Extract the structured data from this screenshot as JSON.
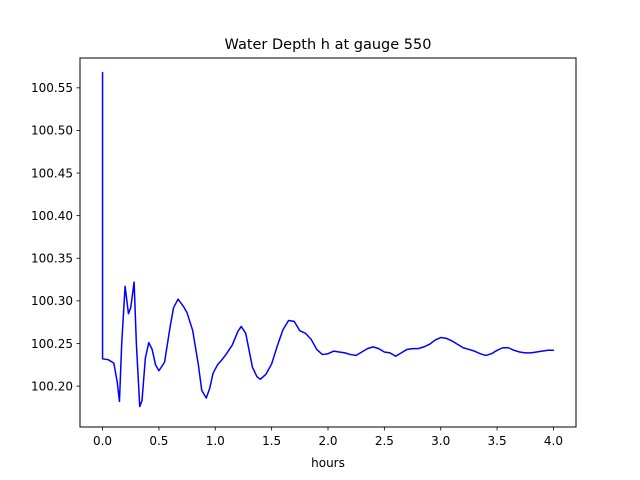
{
  "chart_data": {
    "type": "line",
    "title": "Water Depth h at gauge 550",
    "xlabel": "hours",
    "ylabel": "",
    "xlim": [
      -0.2,
      4.2
    ],
    "ylim": [
      100.152,
      100.585
    ],
    "grid": false,
    "xticks": [
      0.0,
      0.5,
      1.0,
      1.5,
      2.0,
      2.5,
      3.0,
      3.5,
      4.0
    ],
    "xtick_labels": [
      "0.0",
      "0.5",
      "1.0",
      "1.5",
      "2.0",
      "2.5",
      "3.0",
      "3.5",
      "4.0"
    ],
    "yticks": [
      100.2,
      100.25,
      100.3,
      100.35,
      100.4,
      100.45,
      100.5,
      100.55
    ],
    "ytick_labels": [
      "100.20",
      "100.25",
      "100.30",
      "100.35",
      "100.40",
      "100.45",
      "100.50",
      "100.55"
    ],
    "series": [
      {
        "color": "#0000ff",
        "x": [
          0.0,
          0.0,
          0.0,
          0.05,
          0.1,
          0.13,
          0.15,
          0.17,
          0.2,
          0.23,
          0.25,
          0.28,
          0.3,
          0.33,
          0.35,
          0.38,
          0.41,
          0.44,
          0.47,
          0.5,
          0.55,
          0.6,
          0.63,
          0.67,
          0.72,
          0.75,
          0.8,
          0.85,
          0.88,
          0.92,
          0.95,
          0.98,
          1.02,
          1.06,
          1.1,
          1.15,
          1.2,
          1.23,
          1.27,
          1.3,
          1.33,
          1.37,
          1.4,
          1.45,
          1.5,
          1.55,
          1.6,
          1.65,
          1.7,
          1.75,
          1.8,
          1.85,
          1.9,
          1.95,
          2.0,
          2.05,
          2.1,
          2.15,
          2.2,
          2.25,
          2.3,
          2.35,
          2.4,
          2.45,
          2.5,
          2.55,
          2.6,
          2.65,
          2.7,
          2.75,
          2.8,
          2.85,
          2.9,
          2.95,
          3.0,
          3.05,
          3.1,
          3.15,
          3.2,
          3.25,
          3.3,
          3.35,
          3.4,
          3.45,
          3.5,
          3.55,
          3.6,
          3.65,
          3.7,
          3.75,
          3.8,
          3.85,
          3.9,
          3.95,
          4.0
        ],
        "y": [
          100.568,
          100.35,
          100.232,
          100.231,
          100.227,
          100.205,
          100.182,
          100.25,
          100.317,
          100.285,
          100.292,
          100.322,
          100.25,
          100.176,
          100.183,
          100.233,
          100.251,
          100.243,
          100.225,
          100.218,
          100.228,
          100.27,
          100.292,
          100.302,
          100.293,
          100.286,
          100.265,
          100.225,
          100.195,
          100.186,
          100.197,
          100.215,
          100.225,
          100.231,
          100.238,
          100.248,
          100.264,
          100.27,
          100.262,
          100.242,
          100.222,
          100.211,
          100.208,
          100.214,
          100.226,
          100.247,
          100.266,
          100.277,
          100.276,
          100.265,
          100.262,
          100.255,
          100.243,
          100.237,
          100.238,
          100.241,
          100.24,
          100.239,
          100.237,
          100.236,
          100.24,
          100.244,
          100.246,
          100.244,
          100.24,
          100.239,
          100.235,
          100.239,
          100.243,
          100.244,
          100.244,
          100.246,
          100.249,
          100.254,
          100.257,
          100.256,
          100.253,
          100.249,
          100.245,
          100.243,
          100.241,
          100.238,
          100.236,
          100.238,
          100.242,
          100.245,
          100.245,
          100.242,
          100.24,
          100.239,
          100.239,
          100.24,
          100.241,
          100.242,
          100.242
        ]
      }
    ]
  }
}
